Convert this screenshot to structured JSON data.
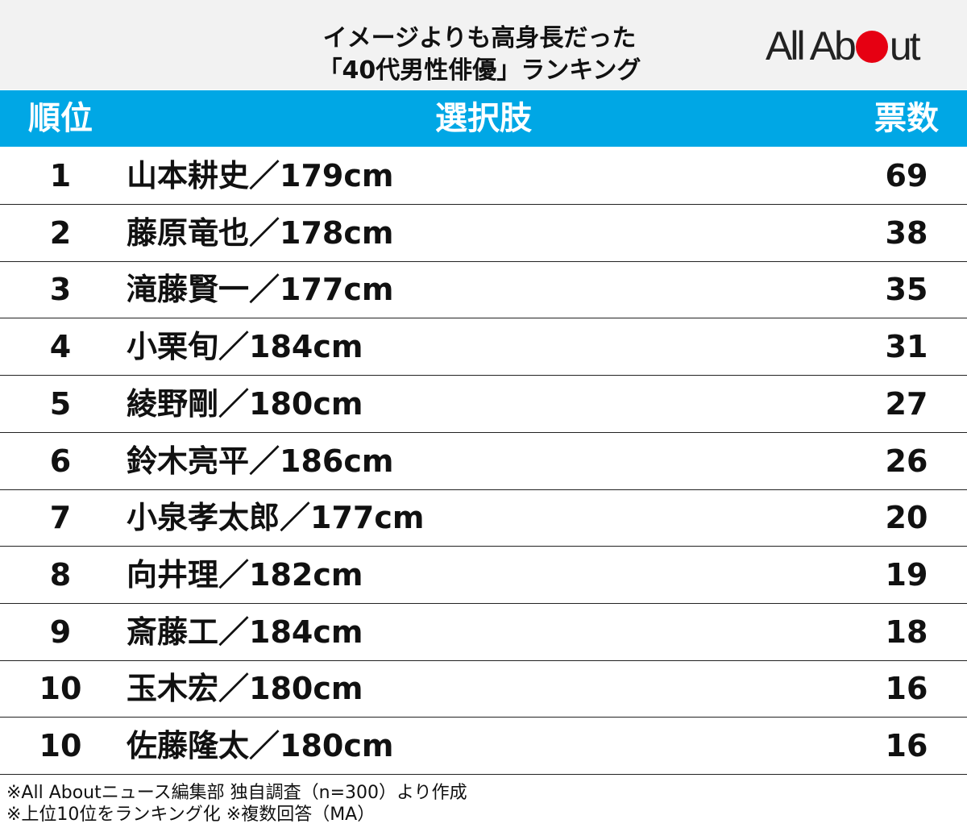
{
  "header": {
    "title_lines": [
      "イメージよりも高身長だった",
      "「40代男性俳優」ランキング"
    ],
    "logo": "All About"
  },
  "table": {
    "columns": [
      "順位",
      "選択肢",
      "票数"
    ],
    "rows": [
      [
        1,
        "山本耕史／179cm",
        69
      ],
      [
        2,
        "藤原竜也／178cm",
        38
      ],
      [
        3,
        "滝藤賢一／177cm",
        35
      ],
      [
        4,
        "小栗旬／184cm",
        31
      ],
      [
        5,
        "綾野剛／180cm",
        27
      ],
      [
        6,
        "鈴木亮平／186cm",
        26
      ],
      [
        7,
        "小泉孝太郎／177cm",
        20
      ],
      [
        8,
        "向井理／182cm",
        19
      ],
      [
        9,
        "斎藤工／184cm",
        18
      ],
      [
        10,
        "玉木宏／180cm",
        16
      ],
      [
        10,
        "佐藤隆太／180cm",
        16
      ]
    ]
  },
  "footer": {
    "notes": [
      "※All Aboutニュース編集部 独自調査（n=300）より作成",
      "※上位10位をランキング化 ※複数回答（MA）"
    ]
  }
}
